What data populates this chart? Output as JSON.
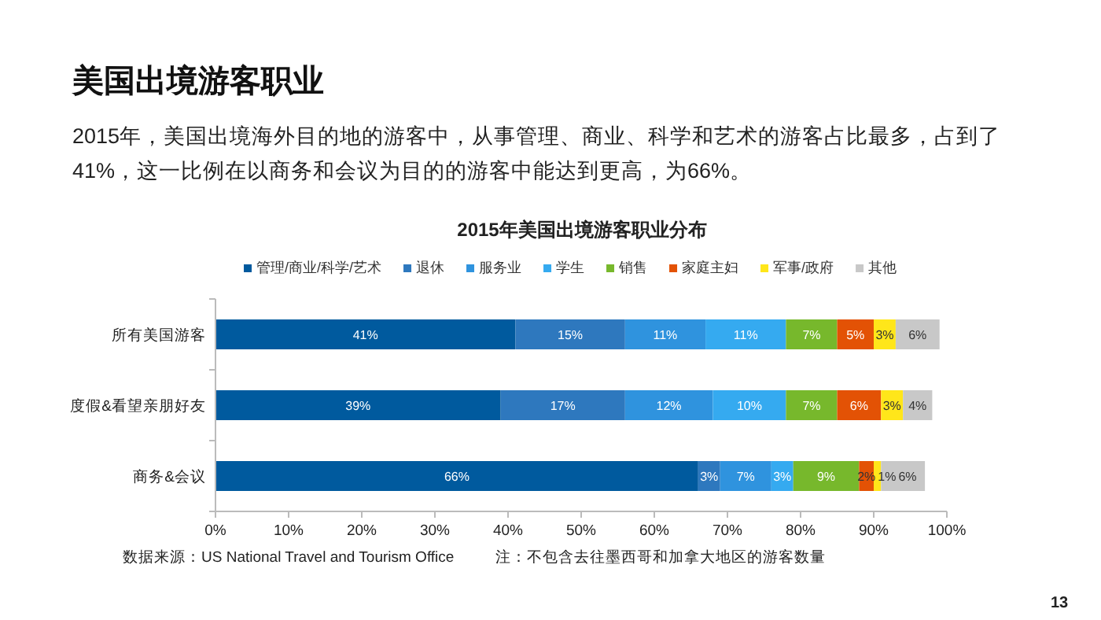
{
  "chart_data": {
    "type": "bar",
    "orientation": "horizontal",
    "stacked": true,
    "title": "2015年美国出境游客职业分布",
    "annotations": [
      "美国出境游客职业",
      "2015年，美国出境海外目的地的游客中，从事管理、商业、科学和艺术的游客占比最多，占到了41%，这一比例在以商务和会议为目的的游客中能达到更高，为66%。",
      "数据来源：US National Travel and Tourism Office",
      "注：不包含去往墨西哥和加拿大地区的游客数量",
      "13"
    ],
    "categories": [
      "所有美国游客",
      "度假&看望亲朋好友",
      "商务&会议"
    ],
    "series": [
      {
        "name": "管理/商业/科学/艺术",
        "color": "#005a9e",
        "values": [
          41,
          39,
          66
        ],
        "value_labels": [
          "41%",
          "39%",
          "66%"
        ]
      },
      {
        "name": "退休",
        "color": "#2e78be",
        "values": [
          15,
          17,
          3
        ],
        "value_labels": [
          "15%",
          "17%",
          "3%"
        ]
      },
      {
        "name": "服务业",
        "color": "#2f93de",
        "values": [
          11,
          12,
          7
        ],
        "value_labels": [
          "11%",
          "12%",
          "7%"
        ]
      },
      {
        "name": "学生",
        "color": "#35aaf0",
        "values": [
          11,
          10,
          3
        ],
        "value_labels": [
          "11%",
          "10%",
          "3%"
        ]
      },
      {
        "name": "销售",
        "color": "#77b82c",
        "values": [
          7,
          7,
          9
        ],
        "value_labels": [
          "7%",
          "7%",
          "9%"
        ]
      },
      {
        "name": "家庭主妇",
        "color": "#e35205",
        "values": [
          5,
          6,
          2
        ],
        "value_labels": [
          "5%",
          "6%",
          "2%"
        ]
      },
      {
        "name": "军事/政府",
        "color": "#ffe61a",
        "values": [
          3,
          3,
          1
        ],
        "value_labels": [
          "3%",
          "3%",
          "1%"
        ]
      },
      {
        "name": "其他",
        "color": "#c8c8c8",
        "values": [
          6,
          4,
          6
        ],
        "value_labels": [
          "6%",
          "4%",
          "6%"
        ]
      }
    ],
    "xlim": [
      0,
      100
    ],
    "xticks": [
      {
        "value": 0,
        "label": "0%"
      },
      {
        "value": 10,
        "label": "10%"
      },
      {
        "value": 20,
        "label": "20%"
      },
      {
        "value": 30,
        "label": "30%"
      },
      {
        "value": 40,
        "label": "40%"
      },
      {
        "value": 50,
        "label": "50%"
      },
      {
        "value": 60,
        "label": "60%"
      },
      {
        "value": 70,
        "label": "70%"
      },
      {
        "value": 80,
        "label": "80%"
      },
      {
        "value": 90,
        "label": "90%"
      },
      {
        "value": 100,
        "label": "100%"
      }
    ],
    "legend": "top",
    "grid": false
  }
}
